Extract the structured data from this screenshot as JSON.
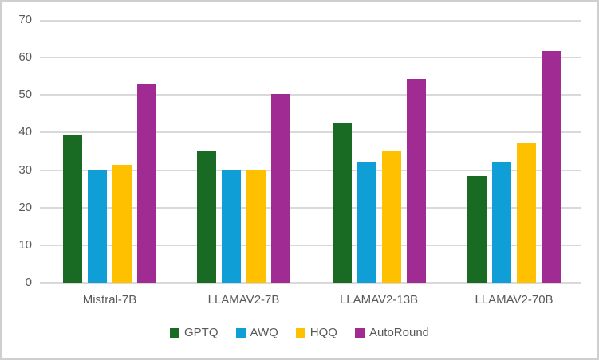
{
  "chart_data": {
    "type": "bar",
    "title": "",
    "xlabel": "",
    "ylabel": "",
    "categories": [
      "Mistral-7B",
      "LLAMAV2-7B",
      "LLAMAV2-13B",
      "LLAMAV2-70B"
    ],
    "series": [
      {
        "name": "GPTQ",
        "color": "#196B24",
        "values": [
          39.5,
          35.2,
          42.5,
          28.4
        ]
      },
      {
        "name": "AWQ",
        "color": "#0F9ED5",
        "values": [
          30.1,
          30.1,
          32.2,
          32.2
        ]
      },
      {
        "name": "HQQ",
        "color": "#FFC000",
        "values": [
          31.3,
          29.9,
          35.3,
          37.4
        ]
      },
      {
        "name": "AutoRound",
        "color": "#A02B93",
        "values": [
          52.8,
          50.3,
          54.2,
          61.8
        ]
      }
    ],
    "ylim": [
      0,
      70
    ],
    "yticks": [
      0,
      10,
      20,
      30,
      40,
      50,
      60,
      70
    ],
    "grid": true,
    "legend_position": "bottom",
    "colors": {
      "axis_text": "#595959",
      "gridline": "#d9d9d9",
      "frame_border": "#cfcfcf",
      "background": "#ffffff"
    }
  }
}
